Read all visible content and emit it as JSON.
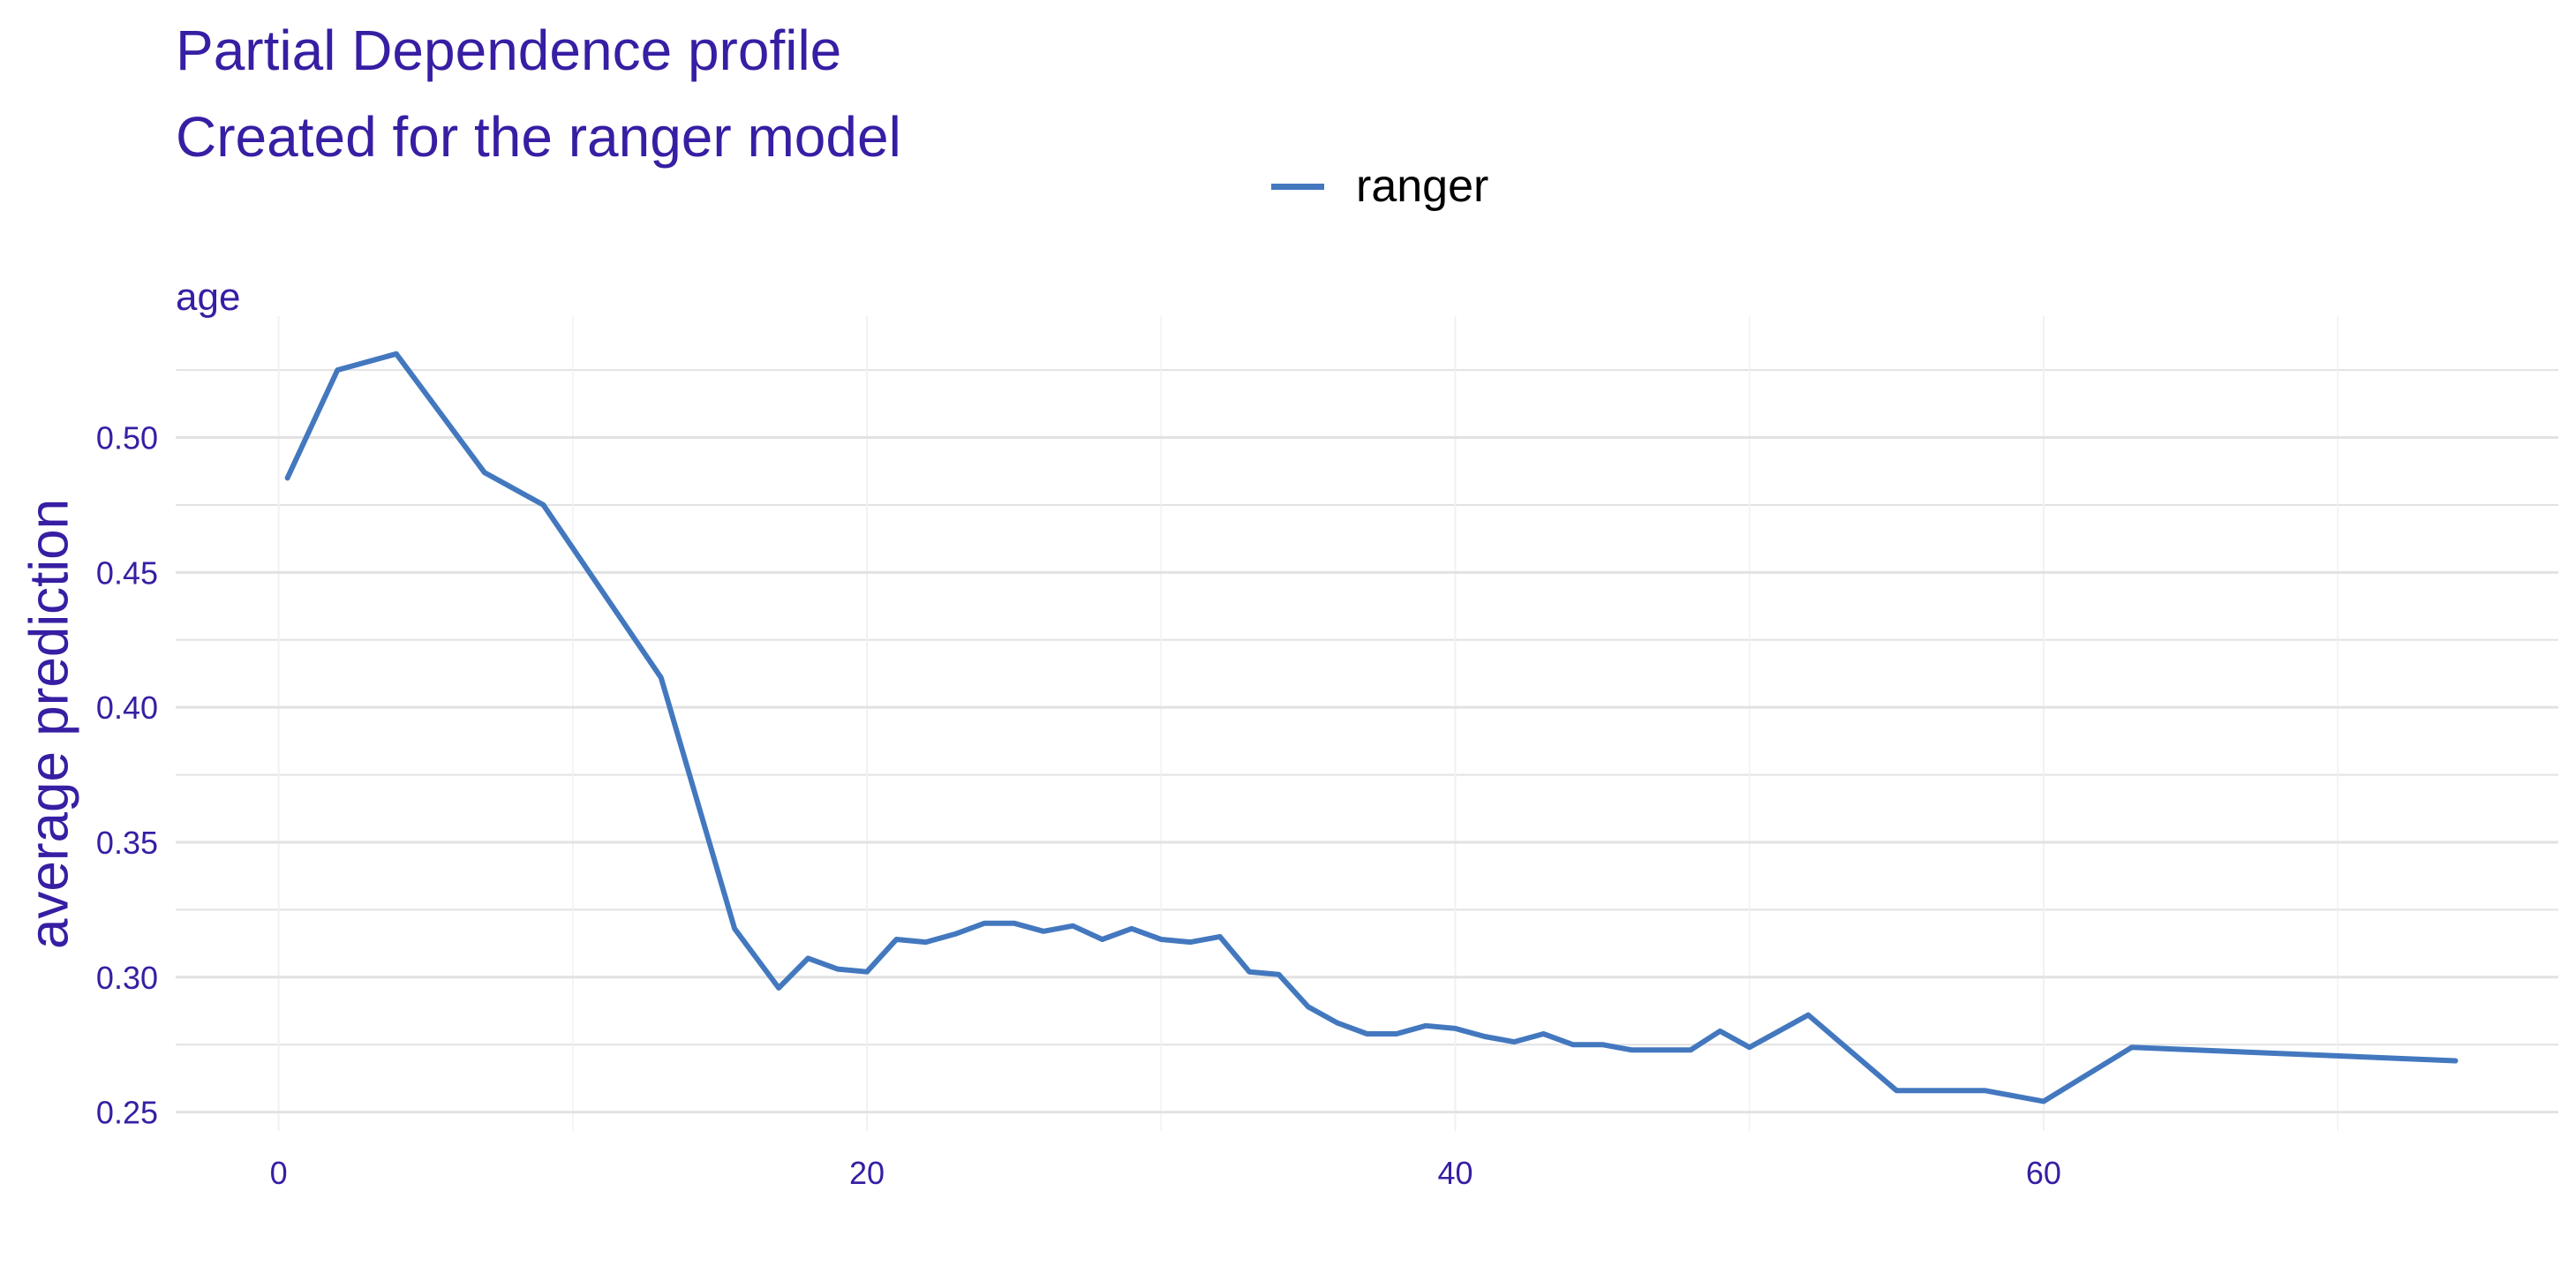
{
  "chart_data": {
    "type": "line",
    "title": "Partial Dependence profile",
    "subtitle": "Created for the ranger model",
    "panel_label": "age",
    "xlabel": "",
    "ylabel": "average prediction",
    "xlim": [
      -3.5,
      77.5
    ],
    "ylim": [
      0.243,
      0.545
    ],
    "x_ticks": [
      0,
      20,
      40,
      60
    ],
    "y_ticks": [
      0.25,
      0.3,
      0.35,
      0.4,
      0.45,
      0.5
    ],
    "x_tick_labels": [
      "0",
      "20",
      "40",
      "60"
    ],
    "y_tick_labels": [
      "0.25",
      "0.30",
      "0.35",
      "0.40",
      "0.45",
      "0.50"
    ],
    "grid": true,
    "legend_position": "top",
    "colors": {
      "series": "#4378bf",
      "text": "#371ea3",
      "grid": "#e2e2e2",
      "legend_text": "#000000"
    },
    "series": [
      {
        "name": "ranger",
        "x": [
          0.3,
          2,
          4,
          7,
          9,
          13,
          15.5,
          17,
          18,
          19,
          20,
          21,
          22,
          23,
          24,
          25,
          26,
          27,
          28,
          29,
          30,
          31,
          32,
          33,
          34,
          35,
          36,
          37,
          38,
          39,
          40,
          41,
          42,
          43,
          44,
          45,
          46,
          47,
          48,
          49,
          50,
          52,
          55,
          58,
          60,
          63,
          74
        ],
        "y": [
          0.485,
          0.525,
          0.531,
          0.487,
          0.475,
          0.411,
          0.318,
          0.296,
          0.307,
          0.303,
          0.302,
          0.314,
          0.313,
          0.316,
          0.32,
          0.32,
          0.317,
          0.319,
          0.314,
          0.318,
          0.314,
          0.313,
          0.315,
          0.302,
          0.301,
          0.289,
          0.283,
          0.279,
          0.279,
          0.282,
          0.281,
          0.278,
          0.276,
          0.279,
          0.275,
          0.275,
          0.273,
          0.273,
          0.273,
          0.28,
          0.274,
          0.286,
          0.258,
          0.258,
          0.254,
          0.274,
          0.269
        ]
      }
    ]
  }
}
